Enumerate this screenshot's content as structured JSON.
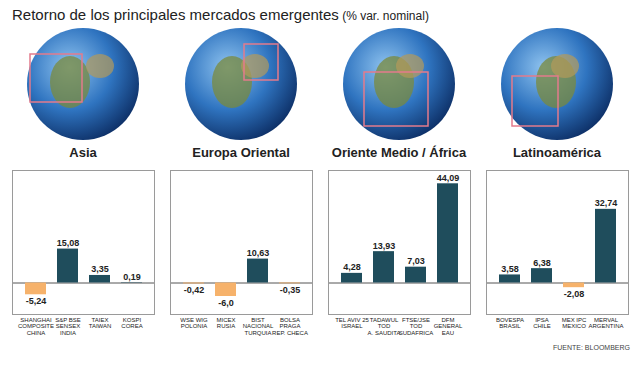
{
  "title": "Retorno de los principales mercados emergentes",
  "subtitle": "(% var. nominal)",
  "source": "FUENTE: BLOOMBERG",
  "chart_data": [
    {
      "type": "bar",
      "title": "Asia",
      "categories": [
        "SHANGHAI\nCOMPOSITE\nCHINA",
        "S&P BSE\nSENSEX\nINDIA",
        "TAIEX\nTAIWAN",
        "KOSPI\nCOREA"
      ],
      "values": [
        -5.24,
        15.08,
        3.35,
        0.19
      ],
      "value_labels": [
        "-5,24",
        "15,08",
        "3,35",
        "0,19"
      ],
      "colors": [
        "#f6b26b",
        "#1f4d5c",
        "#1f4d5c",
        "#1f4d5c"
      ],
      "ylim": [
        -14,
        50
      ],
      "yticks": [
        0
      ],
      "tick_labels": "x",
      "data_labels": true
    },
    {
      "type": "bar",
      "title": "Europa Oriental",
      "categories": [
        "WSE WIG\nPOLONIA",
        "MICEX\nRUSIA",
        "BIST\nNACIONAL\nTURQUIA",
        "BOLSA\nPRAGA\nREP. CHECA"
      ],
      "values": [
        -0.42,
        -6.0,
        10.63,
        -0.35
      ],
      "value_labels": [
        "-0,42",
        "-6,0",
        "10,63",
        "-0,35"
      ],
      "colors": [
        "#f6b26b",
        "#f6b26b",
        "#1f4d5c",
        "#f6b26b"
      ],
      "ylim": [
        -14,
        50
      ],
      "yticks": [
        0
      ],
      "tick_labels": "x",
      "data_labels": true
    },
    {
      "type": "bar",
      "title": "Oriente Medio / África",
      "categories": [
        "TEL AVIV 25\nISRAEL",
        "TADAWUL\nTOD\nA. SAUDITA",
        "FTSE/JSE\nTOD\nSUDAFRICA",
        "DFM\nGENERAL\nEAU"
      ],
      "values": [
        4.28,
        13.93,
        7.03,
        44.09
      ],
      "value_labels": [
        "4,28",
        "13,93",
        "7,03",
        "44,09"
      ],
      "colors": [
        "#1f4d5c",
        "#1f4d5c",
        "#1f4d5c",
        "#1f4d5c"
      ],
      "ylim": [
        -14,
        50
      ],
      "yticks": [
        0
      ],
      "tick_labels": "x",
      "data_labels": true
    },
    {
      "type": "bar",
      "title": "Latinoamérica",
      "categories": [
        "BOVESPA\nBRASIL",
        "IPSA\nCHILE",
        "MEX IPC\nMEXICO",
        "MERVAL\nARGENTINA"
      ],
      "values": [
        3.58,
        6.38,
        -2.08,
        32.74
      ],
      "value_labels": [
        "3,58",
        "6,38",
        "-2,08",
        "32,74"
      ],
      "colors": [
        "#1f4d5c",
        "#1f4d5c",
        "#f6b26b",
        "#1f4d5c"
      ],
      "ylim": [
        -14,
        50
      ],
      "yticks": [
        0
      ],
      "tick_labels": "x",
      "data_labels": true
    }
  ]
}
